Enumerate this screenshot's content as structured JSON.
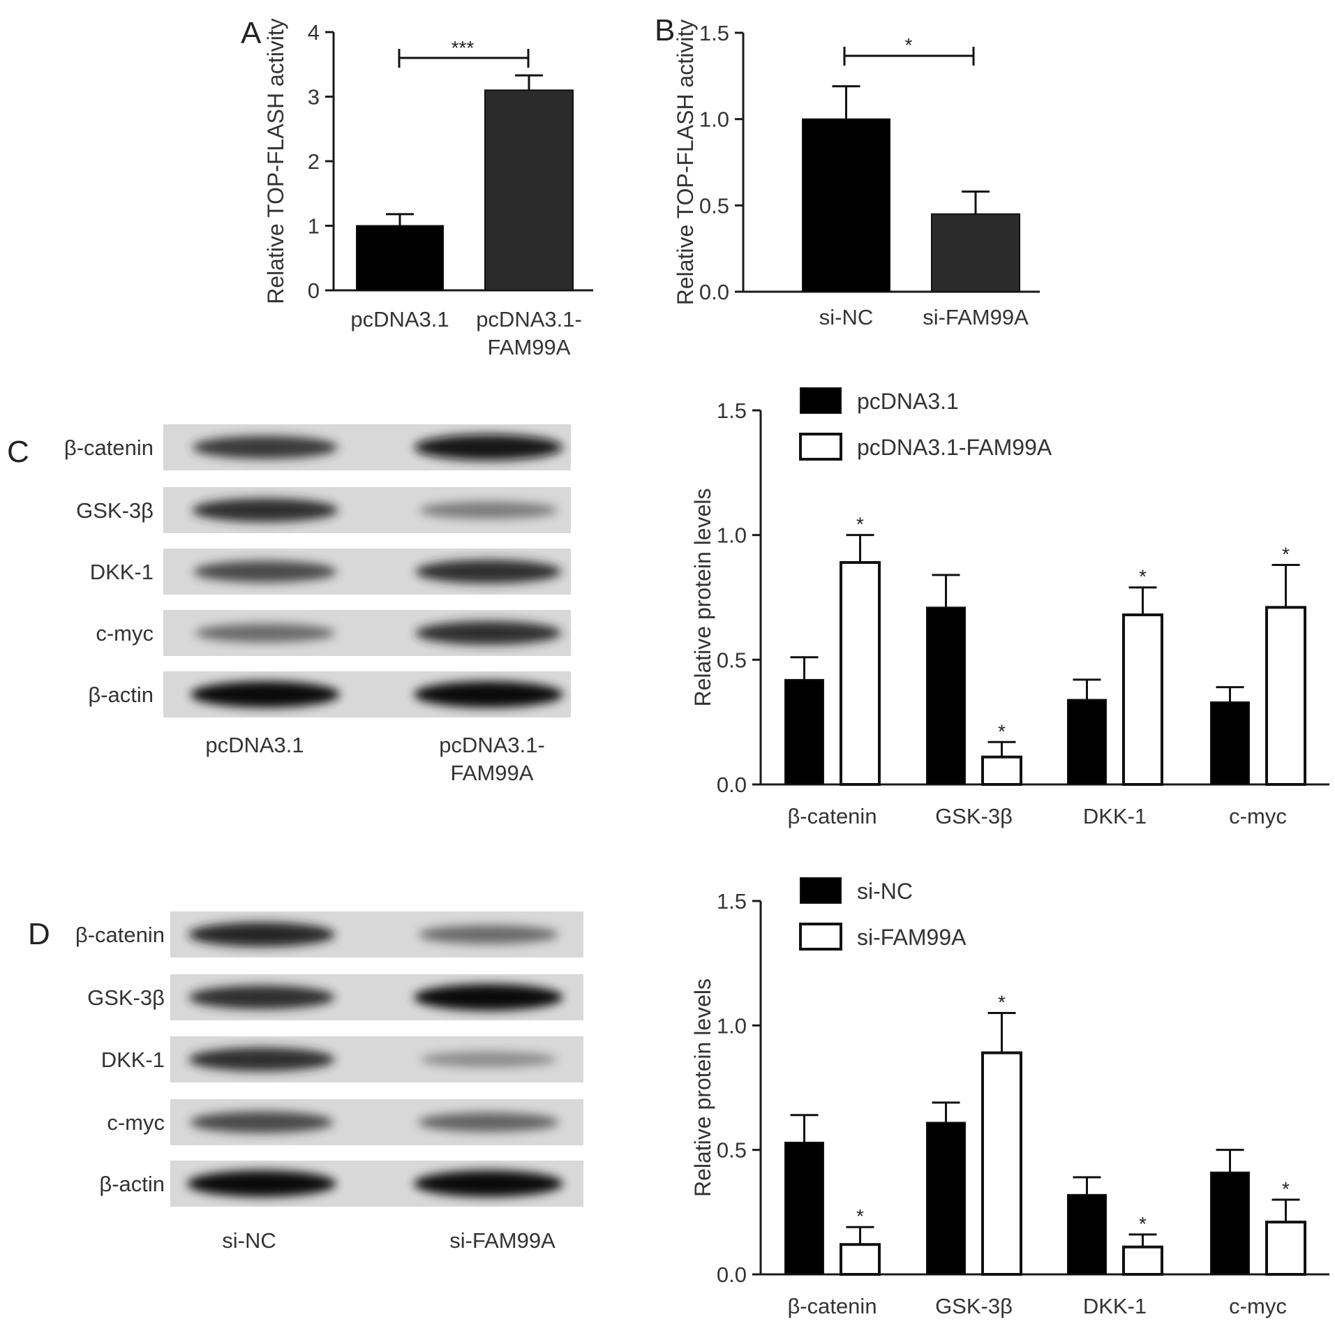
{
  "colors": {
    "black_bar": "#000000",
    "dark_bar": "#2b2b2b",
    "white_bar": "#ffffff",
    "axis": "#1a1a1a"
  },
  "panels": {
    "A": {
      "letter": "A"
    },
    "B": {
      "letter": "B"
    },
    "C": {
      "letter": "C",
      "blot_rows": [
        "β-catenin",
        "GSK-3β",
        "DKK-1",
        "c-myc",
        "β-actin"
      ],
      "lanes": [
        "pcDNA3.1",
        "pcDNA3.1-\nFAM99A"
      ],
      "lane_label_1": "pcDNA3.1",
      "lane_label_2a": "pcDNA3.1-",
      "lane_label_2b": "FAM99A",
      "band_intensity": [
        [
          0.75,
          0.95
        ],
        [
          0.8,
          0.35
        ],
        [
          0.65,
          0.8
        ],
        [
          0.45,
          0.8
        ],
        [
          1.0,
          1.0
        ]
      ]
    },
    "D": {
      "letter": "D",
      "blot_rows": [
        "β-catenin",
        "GSK-3β",
        "DKK-1",
        "c-myc",
        "β-actin"
      ],
      "lane_label_1": "si-NC",
      "lane_label_2": "si-FAM99A",
      "band_intensity": [
        [
          0.85,
          0.45
        ],
        [
          0.8,
          1.0
        ],
        [
          0.8,
          0.25
        ],
        [
          0.65,
          0.5
        ],
        [
          1.0,
          1.0
        ]
      ]
    }
  },
  "chart_data": [
    {
      "panel": "A",
      "type": "bar",
      "categories": [
        "pcDNA3.1",
        "pcDNA3.1-\nFAM99A"
      ],
      "values": [
        1.0,
        3.1
      ],
      "errors": [
        0.18,
        0.23
      ],
      "ylabel": "Relative TOP-FLASH activity",
      "ylim": [
        0,
        4
      ],
      "yticks": [
        "0",
        "1",
        "2",
        "3",
        "4"
      ],
      "significance": "***"
    },
    {
      "panel": "B",
      "type": "bar",
      "categories": [
        "si-NC",
        "si-FAM99A"
      ],
      "values": [
        1.0,
        0.45
      ],
      "errors": [
        0.19,
        0.13
      ],
      "ylabel": "Relative TOP-FLASH activity",
      "ylim": [
        0,
        1.5
      ],
      "yticks": [
        "0.0",
        "0.5",
        "1.0",
        "1.5"
      ],
      "significance": "*"
    },
    {
      "panel": "C",
      "type": "bar",
      "categories": [
        "β-catenin",
        "GSK-3β",
        "DKK-1",
        "c-myc"
      ],
      "series": [
        {
          "name": "pcDNA3.1",
          "values": [
            0.42,
            0.71,
            0.34,
            0.33
          ],
          "errors": [
            0.09,
            0.13,
            0.08,
            0.06
          ]
        },
        {
          "name": "pcDNA3.1-FAM99A",
          "values": [
            0.89,
            0.11,
            0.68,
            0.71
          ],
          "errors": [
            0.11,
            0.06,
            0.11,
            0.17
          ]
        }
      ],
      "ylabel": "Relative protein levels",
      "ylim": [
        0,
        1.5
      ],
      "yticks": [
        "0.0",
        "0.5",
        "1.0",
        "1.5"
      ],
      "star_marks": [
        "*",
        "*",
        "*",
        "*"
      ],
      "legend_position": "top-left"
    },
    {
      "panel": "D",
      "type": "bar",
      "categories": [
        "β-catenin",
        "GSK-3β",
        "DKK-1",
        "c-myc"
      ],
      "series": [
        {
          "name": "si-NC",
          "values": [
            0.53,
            0.61,
            0.32,
            0.41
          ],
          "errors": [
            0.11,
            0.08,
            0.07,
            0.09
          ]
        },
        {
          "name": "si-FAM99A",
          "values": [
            0.12,
            0.89,
            0.11,
            0.21
          ],
          "errors": [
            0.07,
            0.16,
            0.05,
            0.09
          ]
        }
      ],
      "ylabel": "Relative protein levels",
      "ylim": [
        0,
        1.5
      ],
      "yticks": [
        "0.0",
        "0.5",
        "1.0",
        "1.5"
      ],
      "star_marks": [
        "*",
        "*",
        "*",
        "*"
      ],
      "legend_position": "top-left"
    }
  ]
}
